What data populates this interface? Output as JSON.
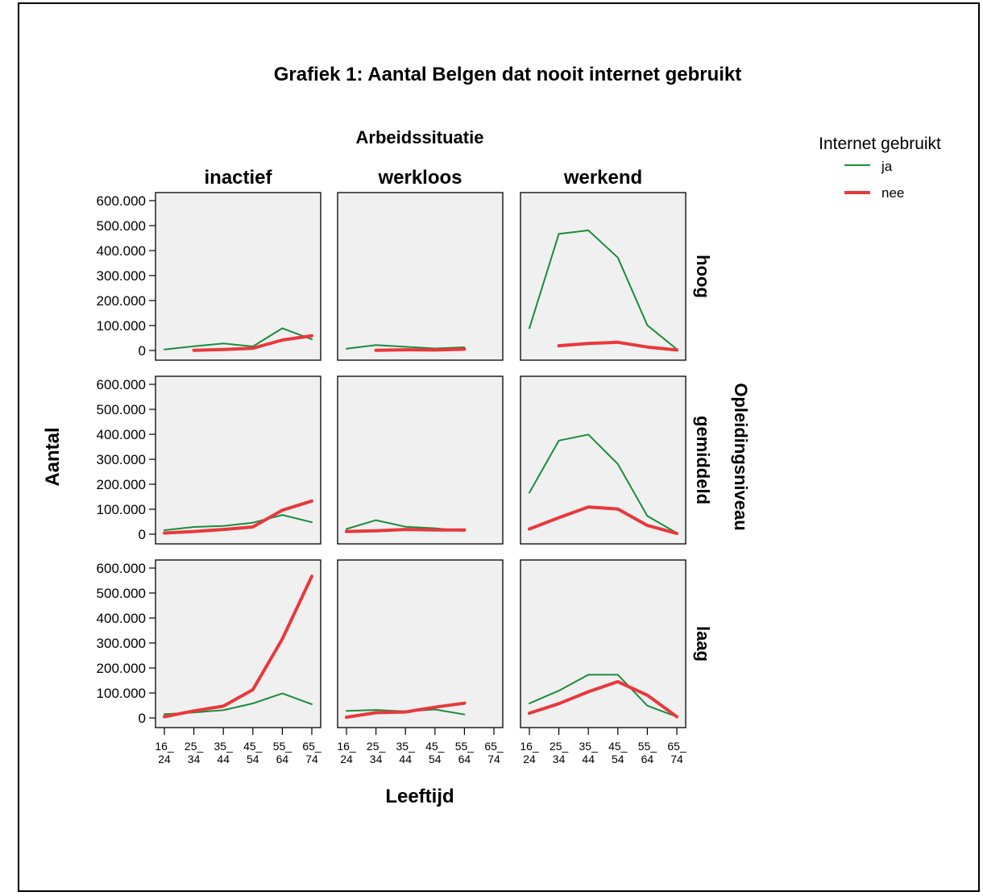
{
  "colors": {
    "ja": "#1a8c3c",
    "nee": "#e8383d",
    "panel_bg": "#f0f0f0"
  },
  "chart_data": {
    "type": "line",
    "title": "Grafiek 1: Aantal Belgen dat nooit internet gebruikt",
    "column_header": "Arbeidssituatie",
    "row_header": "Opleidingsniveau",
    "xlabel": "Leeftijd",
    "ylabel": "Aantal",
    "legend_title": "Internet gebruikt",
    "legend_placement": "top-right",
    "ylim": [
      0,
      600000
    ],
    "ytick_labels": [
      "0",
      "100.000",
      "200.000",
      "300.000",
      "400.000",
      "500.000",
      "600.000"
    ],
    "x_categories": [
      "16_ 24",
      "25_ 34",
      "35_ 44",
      "45_ 54",
      "55_ 64",
      "65_ 74"
    ],
    "columns": [
      "inactief",
      "werkloos",
      "werkend"
    ],
    "rows": [
      "hoog",
      "gemiddeld",
      "laag"
    ],
    "panels": [
      {
        "row": "hoog",
        "column": "inactief",
        "series": [
          {
            "name": "ja",
            "values": [
              4000,
              17000,
              28000,
              16000,
              89000,
              45000
            ]
          },
          {
            "name": "nee",
            "values": [
              null,
              1000,
              4000,
              9000,
              42000,
              59000
            ]
          }
        ]
      },
      {
        "row": "hoog",
        "column": "werkloos",
        "series": [
          {
            "name": "ja",
            "values": [
              7000,
              22000,
              15000,
              8000,
              13000,
              null
            ]
          },
          {
            "name": "nee",
            "values": [
              null,
              1000,
              3000,
              2000,
              5000,
              null
            ]
          }
        ]
      },
      {
        "row": "hoog",
        "column": "werkend",
        "series": [
          {
            "name": "ja",
            "values": [
              89000,
              467000,
              481000,
              372000,
              101000,
              5000
            ]
          },
          {
            "name": "nee",
            "values": [
              null,
              19000,
              28000,
              33000,
              14000,
              2000
            ]
          }
        ]
      },
      {
        "row": "gemiddeld",
        "column": "inactief",
        "series": [
          {
            "name": "ja",
            "values": [
              16000,
              29000,
              33000,
              46000,
              77000,
              48000
            ]
          },
          {
            "name": "nee",
            "values": [
              5000,
              11000,
              19000,
              29000,
              96000,
              133000
            ]
          }
        ]
      },
      {
        "row": "gemiddeld",
        "column": "werkloos",
        "series": [
          {
            "name": "ja",
            "values": [
              21000,
              56000,
              30000,
              24000,
              13000,
              null
            ]
          },
          {
            "name": "nee",
            "values": [
              11000,
              14000,
              19000,
              17000,
              17000,
              null
            ]
          }
        ]
      },
      {
        "row": "gemiddeld",
        "column": "werkend",
        "series": [
          {
            "name": "ja",
            "values": [
              166000,
              375000,
              399000,
              281000,
              73000,
              5000
            ]
          },
          {
            "name": "nee",
            "values": [
              21000,
              66000,
              109000,
              101000,
              35000,
              3000
            ]
          }
        ]
      },
      {
        "row": "laag",
        "column": "inactief",
        "series": [
          {
            "name": "ja",
            "values": [
              15000,
              22000,
              31000,
              58000,
              98000,
              55000
            ]
          },
          {
            "name": "nee",
            "values": [
              5000,
              28000,
              47000,
              113000,
              316000,
              567000
            ]
          }
        ]
      },
      {
        "row": "laag",
        "column": "werkloos",
        "series": [
          {
            "name": "ja",
            "values": [
              28000,
              32000,
              26000,
              34000,
              14000,
              null
            ]
          },
          {
            "name": "nee",
            "values": [
              3000,
              21000,
              24000,
              43000,
              59000,
              null
            ]
          }
        ]
      },
      {
        "row": "laag",
        "column": "werkend",
        "series": [
          {
            "name": "ja",
            "values": [
              58000,
              109000,
              173000,
              173000,
              49000,
              5000
            ]
          },
          {
            "name": "nee",
            "values": [
              19000,
              57000,
              105000,
              145000,
              91000,
              5000
            ]
          }
        ]
      }
    ]
  }
}
